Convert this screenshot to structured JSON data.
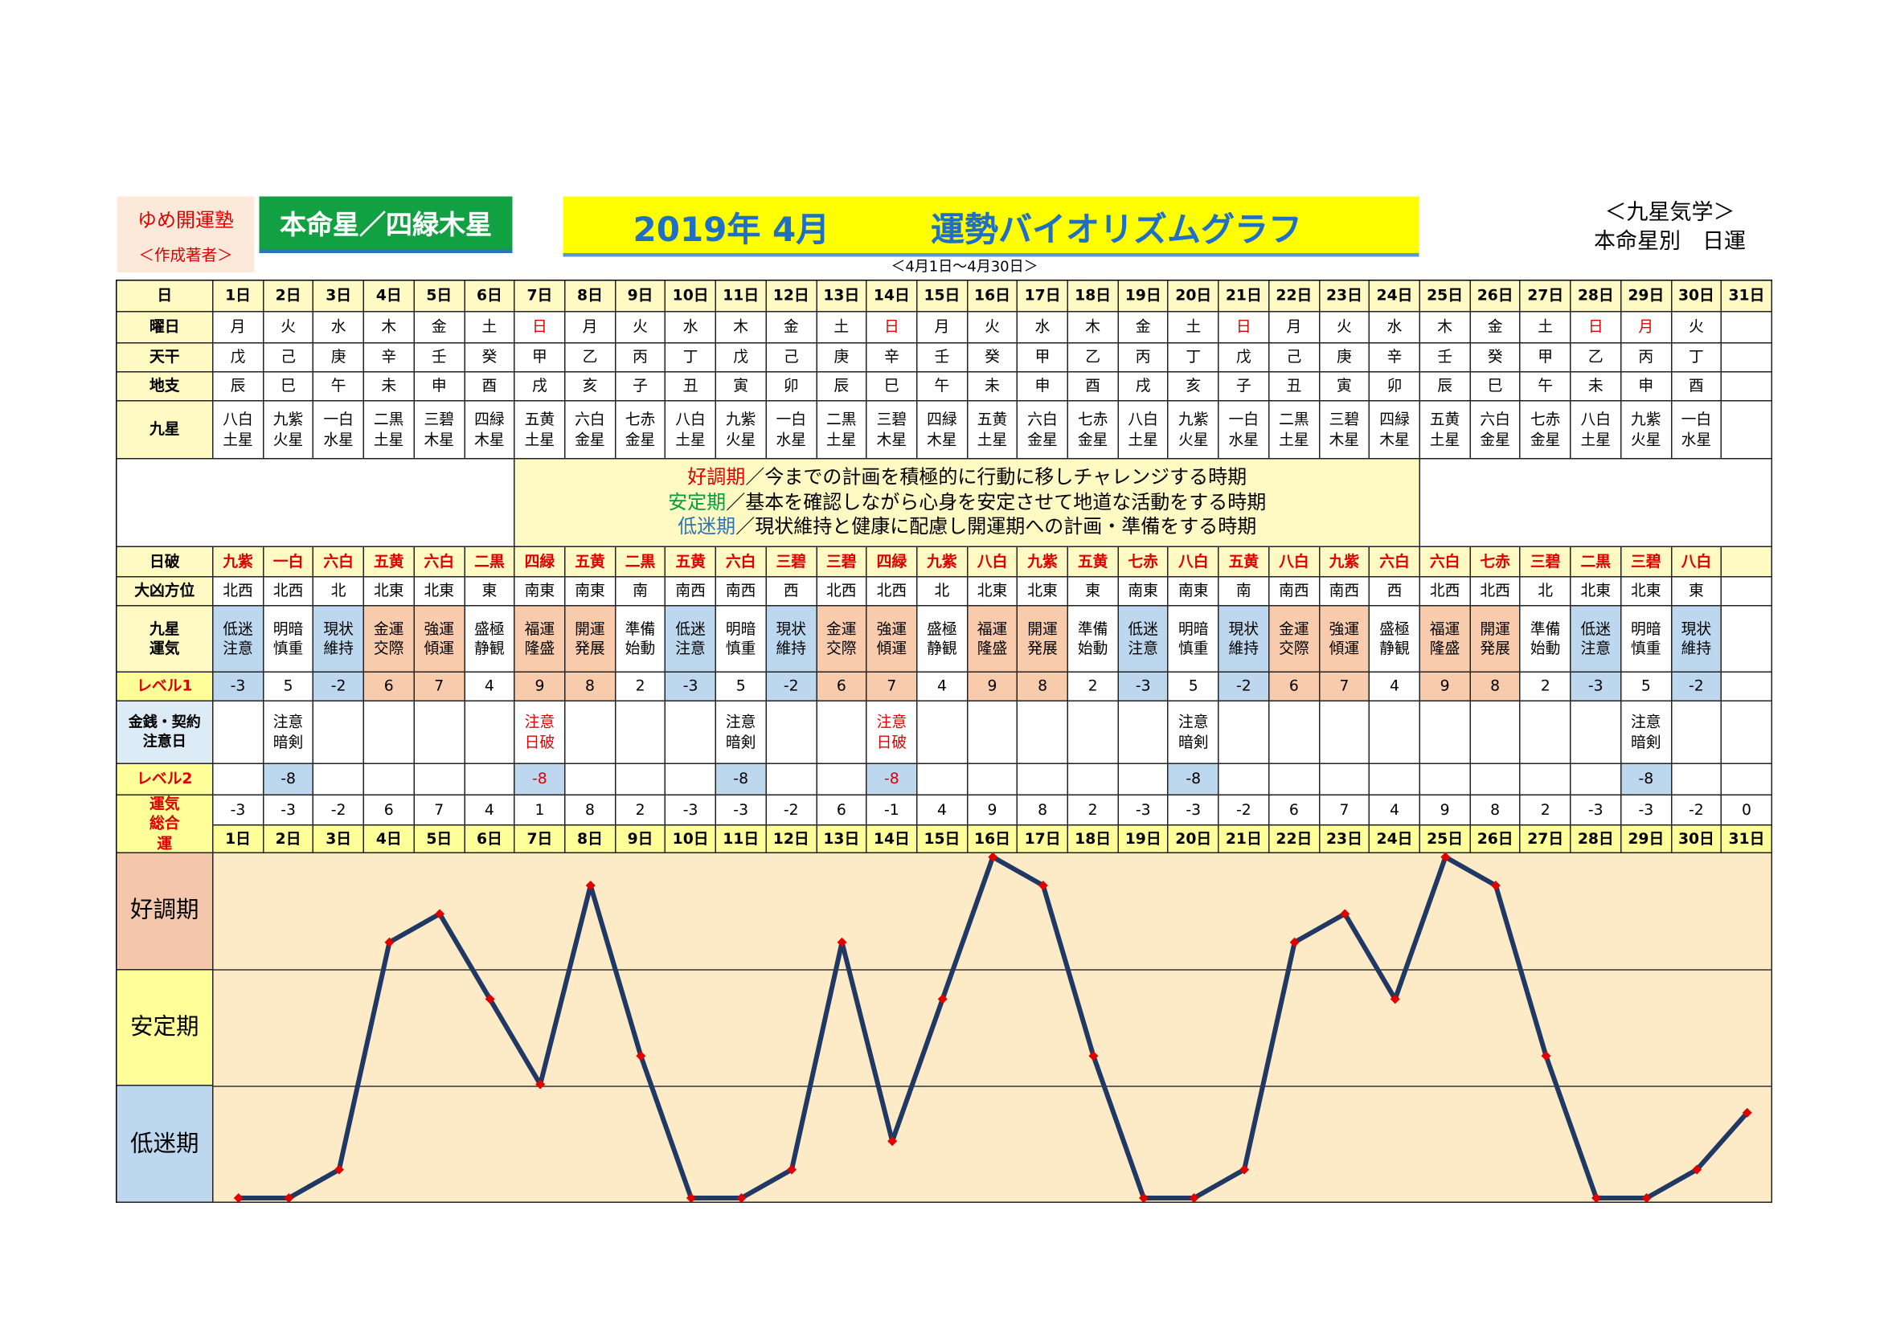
{
  "header": {
    "school": "ゆめ開運塾",
    "author": "＜作成著者＞",
    "star": "本命星／四緑木星",
    "month": "2019年 4月",
    "title": "運勢バイオリズムグラフ",
    "range": "＜4月1日～4月30日＞",
    "system": "＜九星気学＞",
    "subtitle": "本命星別　日運"
  },
  "table": {
    "rows": [
      {
        "label": "日",
        "values": [
          "1日",
          "2日",
          "3日",
          "4日",
          "5日",
          "6日",
          "7日",
          "8日",
          "9日",
          "10日",
          "11日",
          "12日",
          "13日",
          "14日",
          "15日",
          "16日",
          "17日",
          "18日",
          "19日",
          "20日",
          "21日",
          "22日",
          "23日",
          "24日",
          "25日",
          "26日",
          "27日",
          "28日",
          "29日",
          "30日",
          "31日"
        ]
      },
      {
        "label": "曜日",
        "values": [
          "月",
          "火",
          "水",
          "木",
          "金",
          "土",
          "日",
          "月",
          "火",
          "水",
          "木",
          "金",
          "土",
          "日",
          "月",
          "火",
          "水",
          "木",
          "金",
          "土",
          "日",
          "月",
          "火",
          "水",
          "木",
          "金",
          "土",
          "日",
          "月",
          "火",
          null
        ],
        "red": [
          6,
          13,
          20,
          27,
          28
        ]
      },
      {
        "label": "天干",
        "values": [
          "戊",
          "己",
          "庚",
          "辛",
          "壬",
          "癸",
          "甲",
          "乙",
          "丙",
          "丁",
          "戊",
          "己",
          "庚",
          "辛",
          "壬",
          "癸",
          "甲",
          "乙",
          "丙",
          "丁",
          "戊",
          "己",
          "庚",
          "辛",
          "壬",
          "癸",
          "甲",
          "乙",
          "丙",
          "丁",
          null
        ]
      },
      {
        "label": "地支",
        "values": [
          "辰",
          "巳",
          "午",
          "未",
          "申",
          "酉",
          "戌",
          "亥",
          "子",
          "丑",
          "寅",
          "卯",
          "辰",
          "巳",
          "午",
          "未",
          "申",
          "酉",
          "戌",
          "亥",
          "子",
          "丑",
          "寅",
          "卯",
          "辰",
          "巳",
          "午",
          "未",
          "申",
          "酉",
          null
        ]
      },
      {
        "label": "九星",
        "values": [
          "八白土星",
          "九紫火星",
          "一白水星",
          "二黒土星",
          "三碧木星",
          "四緑木星",
          "五黄土星",
          "六白金星",
          "七赤金星",
          "八白土星",
          "九紫火星",
          "一白水星",
          "二黒土星",
          "三碧木星",
          "四緑木星",
          "五黄土星",
          "六白金星",
          "七赤金星",
          "八白土星",
          "九紫火星",
          "一白水星",
          "二黒土星",
          "三碧木星",
          "四緑木星",
          "五黄土星",
          "六白金星",
          "七赤金星",
          "八白土星",
          "九紫火星",
          "一白水星",
          null
        ]
      },
      {
        "label": "日破",
        "values": [
          "九紫",
          "一白",
          "六白",
          "五黄",
          "六白",
          "二黒",
          "四緑",
          "五黄",
          "二黒",
          "五黄",
          "六白",
          "三碧",
          "三碧",
          "四緑",
          "九紫",
          "八白",
          "九紫",
          "五黄",
          "七赤",
          "八白",
          "五黄",
          "八白",
          "九紫",
          "六白",
          "六白",
          "七赤",
          "三碧",
          "二黒",
          "三碧",
          "八白",
          null
        ]
      },
      {
        "label": "大凶方位",
        "values": [
          "北西",
          "北西",
          "北",
          "北東",
          "北東",
          "東",
          "南東",
          "南東",
          "南",
          "南西",
          "南西",
          "西",
          "北西",
          "北西",
          "北",
          "北東",
          "北東",
          "東",
          "南東",
          "南東",
          "南",
          "南西",
          "南西",
          "西",
          "北西",
          "北西",
          "北",
          "北東",
          "北東",
          "東",
          null
        ]
      },
      {
        "label": "九星運気",
        "values": [
          "低迷注意",
          "明暗慎重",
          "現状維持",
          "金運交際",
          "強運傾運",
          "盛極静観",
          "福運隆盛",
          "開運発展",
          "準備始動",
          "低迷注意",
          "明暗慎重",
          "現状維持",
          "金運交際",
          "強運傾運",
          "盛極静観",
          "福運隆盛",
          "開運発展",
          "準備始動",
          "低迷注意",
          "明暗慎重",
          "現状維持",
          "金運交際",
          "強運傾運",
          "盛極静観",
          "福運隆盛",
          "開運発展",
          "準備始動",
          "低迷注意",
          "明暗慎重",
          "現状維持",
          null
        ]
      },
      {
        "label": "レベル1",
        "values": [
          -3,
          5,
          -2,
          6,
          7,
          4,
          9,
          8,
          2,
          -3,
          5,
          -2,
          6,
          7,
          4,
          9,
          8,
          2,
          -3,
          5,
          -2,
          6,
          7,
          4,
          9,
          8,
          2,
          -3,
          5,
          -2,
          null
        ]
      },
      {
        "label": "金銭・契約注意日",
        "values": [
          null,
          "注意暗剣",
          null,
          null,
          null,
          null,
          "注意日破",
          null,
          null,
          null,
          "注意暗剣",
          null,
          null,
          "注意日破",
          null,
          null,
          null,
          null,
          null,
          "注意暗剣",
          null,
          null,
          null,
          null,
          null,
          null,
          null,
          null,
          "注意暗剣",
          null,
          null
        ],
        "red": [
          6,
          13
        ]
      },
      {
        "label": "レベル2",
        "values": [
          null,
          -8,
          null,
          null,
          null,
          null,
          -8,
          null,
          null,
          null,
          -8,
          null,
          null,
          -8,
          null,
          null,
          null,
          null,
          null,
          -8,
          null,
          null,
          null,
          null,
          null,
          null,
          null,
          null,
          -8,
          null,
          null
        ],
        "red": [
          6,
          13
        ]
      },
      {
        "label": "運気総合運",
        "values": [
          -3,
          -3,
          -2,
          6,
          7,
          4,
          1,
          8,
          2,
          -3,
          -3,
          -2,
          6,
          -1,
          4,
          9,
          8,
          2,
          -3,
          -3,
          -2,
          6,
          7,
          4,
          9,
          8,
          2,
          -3,
          -3,
          -2,
          0
        ]
      }
    ]
  },
  "description": [
    {
      "term": "好調期",
      "text": "／今までの計画を積極的に行動に移しチャレンジする時期",
      "color": "#e00000"
    },
    {
      "term": "安定期",
      "text": "／基本を確認しながら心身を安定させて地道な活動をする時期",
      "color": "#00a040"
    },
    {
      "term": "低迷期",
      "text": "／現状維持と健康に配慮し開運期への計画・準備をする時期",
      "color": "#2e75b6"
    }
  ],
  "chart": {
    "bands": [
      "好調期",
      "安定期",
      "低迷期"
    ],
    "band_colors": [
      "#f4c7ad",
      "#ffff99",
      "#bdd7ee"
    ],
    "ylim": [
      -3.17,
      9.13
    ],
    "line_color": "#1f3864",
    "marker_color": "#e00000",
    "background": "#fdebc8"
  }
}
